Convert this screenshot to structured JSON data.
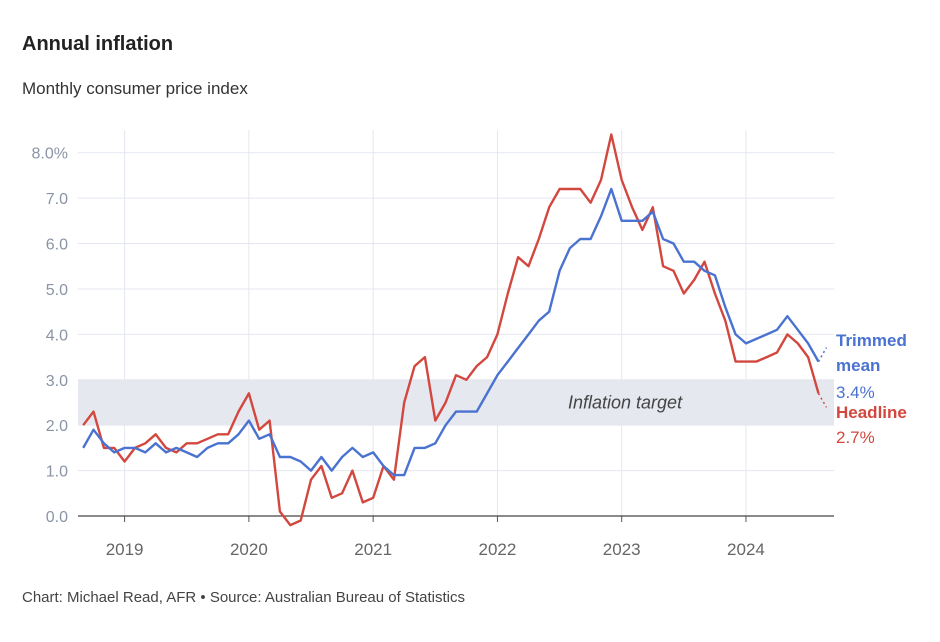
{
  "title": "Annual inflation",
  "subtitle": "Monthly consumer price index",
  "source": "Chart: Michael Read, AFR • Source: Australian Bureau of Statistics",
  "colors": {
    "trimmed": "#4a72d0",
    "headline": "#d2483f",
    "band": "#e6e8f0",
    "grid": "#e4e7ef"
  },
  "chart_data": {
    "type": "line",
    "title": "Annual inflation",
    "subtitle": "Monthly consumer price index",
    "y_ticks": [
      "0.0",
      "1.0",
      "2.0",
      "3.0",
      "4.0",
      "5.0",
      "6.0",
      "7.0",
      "8.0%"
    ],
    "ylim": [
      0,
      8.5
    ],
    "x_ticks": [
      "2019",
      "2020",
      "2021",
      "2022",
      "2023",
      "2024"
    ],
    "xlim": [
      "2018-09",
      "2024-08"
    ],
    "grid": true,
    "band": {
      "label": "Inflation target",
      "from": 2.0,
      "to": 3.0
    },
    "series": [
      {
        "name": "Trimmed mean",
        "label_lines": [
          "Trimmed",
          "mean"
        ],
        "latest_label": "3.4%",
        "points": [
          [
            "2018-09",
            1.5
          ],
          [
            "2018-10",
            1.9
          ],
          [
            "2018-11",
            1.6
          ],
          [
            "2018-12",
            1.4
          ],
          [
            "2019-01",
            1.5
          ],
          [
            "2019-02",
            1.5
          ],
          [
            "2019-03",
            1.4
          ],
          [
            "2019-04",
            1.6
          ],
          [
            "2019-05",
            1.4
          ],
          [
            "2019-06",
            1.5
          ],
          [
            "2019-07",
            1.4
          ],
          [
            "2019-08",
            1.3
          ],
          [
            "2019-09",
            1.5
          ],
          [
            "2019-10",
            1.6
          ],
          [
            "2019-11",
            1.6
          ],
          [
            "2019-12",
            1.8
          ],
          [
            "2020-01",
            2.1
          ],
          [
            "2020-02",
            1.7
          ],
          [
            "2020-03",
            1.8
          ],
          [
            "2020-04",
            1.3
          ],
          [
            "2020-05",
            1.3
          ],
          [
            "2020-06",
            1.2
          ],
          [
            "2020-07",
            1.0
          ],
          [
            "2020-08",
            1.3
          ],
          [
            "2020-09",
            1.0
          ],
          [
            "2020-10",
            1.3
          ],
          [
            "2020-11",
            1.5
          ],
          [
            "2020-12",
            1.3
          ],
          [
            "2021-01",
            1.4
          ],
          [
            "2021-02",
            1.1
          ],
          [
            "2021-03",
            0.9
          ],
          [
            "2021-04",
            0.9
          ],
          [
            "2021-05",
            1.5
          ],
          [
            "2021-06",
            1.5
          ],
          [
            "2021-07",
            1.6
          ],
          [
            "2021-08",
            2.0
          ],
          [
            "2021-09",
            2.3
          ],
          [
            "2021-10",
            2.3
          ],
          [
            "2021-11",
            2.3
          ],
          [
            "2021-12",
            2.7
          ],
          [
            "2022-01",
            3.1
          ],
          [
            "2022-02",
            3.4
          ],
          [
            "2022-03",
            3.7
          ],
          [
            "2022-04",
            4.0
          ],
          [
            "2022-05",
            4.3
          ],
          [
            "2022-06",
            4.5
          ],
          [
            "2022-07",
            5.4
          ],
          [
            "2022-08",
            5.9
          ],
          [
            "2022-09",
            6.1
          ],
          [
            "2022-10",
            6.1
          ],
          [
            "2022-11",
            6.6
          ],
          [
            "2022-12",
            7.2
          ],
          [
            "2023-01",
            6.5
          ],
          [
            "2023-02",
            6.5
          ],
          [
            "2023-03",
            6.5
          ],
          [
            "2023-04",
            6.7
          ],
          [
            "2023-05",
            6.1
          ],
          [
            "2023-06",
            6.0
          ],
          [
            "2023-07",
            5.6
          ],
          [
            "2023-08",
            5.6
          ],
          [
            "2023-09",
            5.4
          ],
          [
            "2023-10",
            5.3
          ],
          [
            "2023-11",
            4.6
          ],
          [
            "2023-12",
            4.0
          ],
          [
            "2024-01",
            3.8
          ],
          [
            "2024-02",
            3.9
          ],
          [
            "2024-03",
            4.0
          ],
          [
            "2024-04",
            4.1
          ],
          [
            "2024-05",
            4.4
          ],
          [
            "2024-06",
            4.1
          ],
          [
            "2024-07",
            3.8
          ],
          [
            "2024-08",
            3.4
          ]
        ]
      },
      {
        "name": "Headline",
        "label_lines": [
          "Headline"
        ],
        "latest_label": "2.7%",
        "points": [
          [
            "2018-09",
            2.0
          ],
          [
            "2018-10",
            2.3
          ],
          [
            "2018-11",
            1.5
          ],
          [
            "2018-12",
            1.5
          ],
          [
            "2019-01",
            1.2
          ],
          [
            "2019-02",
            1.5
          ],
          [
            "2019-03",
            1.6
          ],
          [
            "2019-04",
            1.8
          ],
          [
            "2019-05",
            1.5
          ],
          [
            "2019-06",
            1.4
          ],
          [
            "2019-07",
            1.6
          ],
          [
            "2019-08",
            1.6
          ],
          [
            "2019-09",
            1.7
          ],
          [
            "2019-10",
            1.8
          ],
          [
            "2019-11",
            1.8
          ],
          [
            "2019-12",
            2.3
          ],
          [
            "2020-01",
            2.7
          ],
          [
            "2020-02",
            1.9
          ],
          [
            "2020-03",
            2.1
          ],
          [
            "2020-04",
            0.1
          ],
          [
            "2020-05",
            -0.2
          ],
          [
            "2020-06",
            -0.1
          ],
          [
            "2020-07",
            0.8
          ],
          [
            "2020-08",
            1.1
          ],
          [
            "2020-09",
            0.4
          ],
          [
            "2020-10",
            0.5
          ],
          [
            "2020-11",
            1.0
          ],
          [
            "2020-12",
            0.3
          ],
          [
            "2021-01",
            0.4
          ],
          [
            "2021-02",
            1.1
          ],
          [
            "2021-03",
            0.8
          ],
          [
            "2021-04",
            2.5
          ],
          [
            "2021-05",
            3.3
          ],
          [
            "2021-06",
            3.5
          ],
          [
            "2021-07",
            2.1
          ],
          [
            "2021-08",
            2.5
          ],
          [
            "2021-09",
            3.1
          ],
          [
            "2021-10",
            3.0
          ],
          [
            "2021-11",
            3.3
          ],
          [
            "2021-12",
            3.5
          ],
          [
            "2022-01",
            4.0
          ],
          [
            "2022-02",
            4.9
          ],
          [
            "2022-03",
            5.7
          ],
          [
            "2022-04",
            5.5
          ],
          [
            "2022-05",
            6.1
          ],
          [
            "2022-06",
            6.8
          ],
          [
            "2022-07",
            7.2
          ],
          [
            "2022-08",
            7.2
          ],
          [
            "2022-09",
            7.2
          ],
          [
            "2022-10",
            6.9
          ],
          [
            "2022-11",
            7.4
          ],
          [
            "2022-12",
            8.4
          ],
          [
            "2023-01",
            7.4
          ],
          [
            "2023-02",
            6.8
          ],
          [
            "2023-03",
            6.3
          ],
          [
            "2023-04",
            6.8
          ],
          [
            "2023-05",
            5.5
          ],
          [
            "2023-06",
            5.4
          ],
          [
            "2023-07",
            4.9
          ],
          [
            "2023-08",
            5.2
          ],
          [
            "2023-09",
            5.6
          ],
          [
            "2023-10",
            4.9
          ],
          [
            "2023-11",
            4.3
          ],
          [
            "2023-12",
            3.4
          ],
          [
            "2024-01",
            3.4
          ],
          [
            "2024-02",
            3.4
          ],
          [
            "2024-03",
            3.5
          ],
          [
            "2024-04",
            3.6
          ],
          [
            "2024-05",
            4.0
          ],
          [
            "2024-06",
            3.8
          ],
          [
            "2024-07",
            3.5
          ],
          [
            "2024-08",
            2.7
          ]
        ]
      }
    ]
  }
}
